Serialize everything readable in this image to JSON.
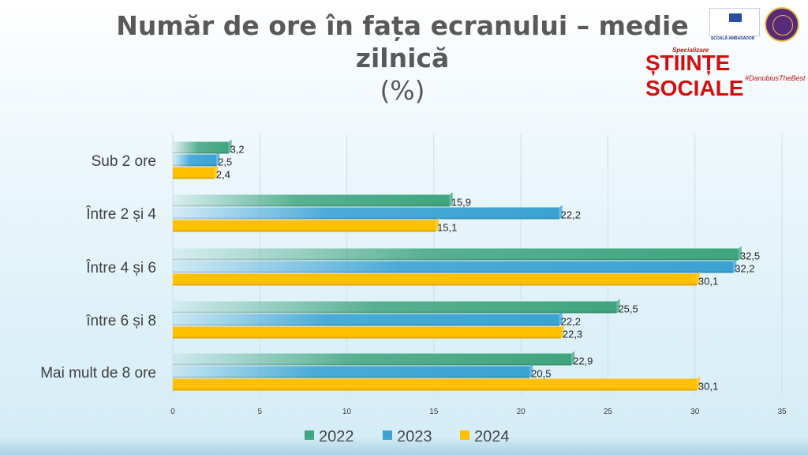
{
  "logos": {
    "ep_small_text": "ȘCOALĂ AMBASADOR",
    "brand_top": "Specializare",
    "brand": "ȘTIINȚE SOCIALE",
    "brand_tag": "#DanubiusTheBest"
  },
  "chart_data": {
    "type": "bar",
    "orientation": "horizontal",
    "title": "Număr de ore în fața ecranului – medie zilnică (%)",
    "title_lines": [
      "Număr de ore în fața ecranului – medie",
      "zilnică",
      "(%)"
    ],
    "categories": [
      "Sub 2 ore",
      "Între 2 și 4",
      "Între 4 și 6",
      "între 6 și 8",
      "Mai mult de 8 ore"
    ],
    "series": [
      {
        "name": "2022",
        "color": "#3fa57f",
        "values": [
          3.2,
          15.9,
          32.5,
          25.5,
          22.9
        ],
        "labels": [
          "3,2",
          "15,9",
          "32,5",
          "25,5",
          "22,9"
        ]
      },
      {
        "name": "2023",
        "color": "#3aa3d4",
        "values": [
          2.5,
          22.2,
          32.2,
          22.2,
          20.5
        ],
        "labels": [
          "2,5",
          "22,2",
          "32,2",
          "22,2",
          "20,5"
        ]
      },
      {
        "name": "2024",
        "color": "#ffc000",
        "values": [
          2.4,
          15.1,
          30.1,
          22.3,
          30.1
        ],
        "labels": [
          "2,4",
          "15,1",
          "30,1",
          "22,3",
          "30,1"
        ]
      }
    ],
    "xlim": [
      0,
      35
    ],
    "xticks": [
      "0",
      "5",
      "10",
      "15",
      "20",
      "25",
      "30",
      "35"
    ],
    "grid": true,
    "legend_position": "bottom"
  }
}
